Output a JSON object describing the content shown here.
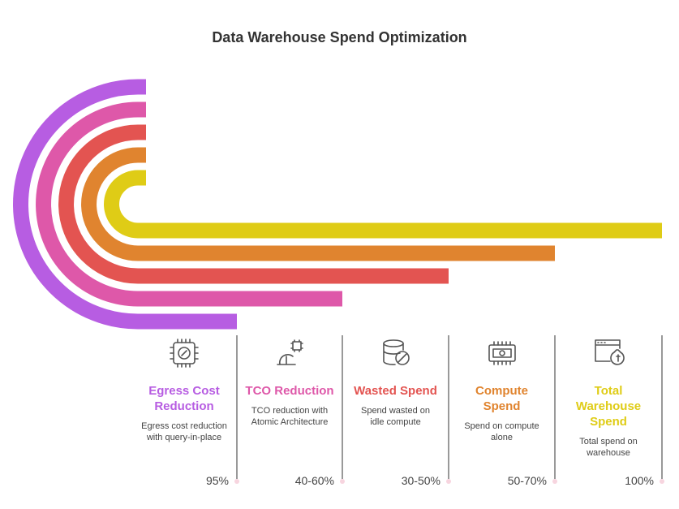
{
  "title": "Data Warehouse Spend Optimization",
  "items": [
    {
      "title": "Egress Cost Reduction",
      "description": "Egress cost reduction with query-in-place",
      "value": "95%",
      "color": "#b75de2"
    },
    {
      "title": "TCO Reduction",
      "description": "TCO reduction with Atomic Architecture",
      "value": "40-60%",
      "color": "#de58a9"
    },
    {
      "title": "Wasted Spend",
      "description": "Spend wasted on idle compute",
      "value": "30-50%",
      "color": "#e35451"
    },
    {
      "title": "Compute Spend",
      "description": "Spend on compute alone",
      "value": "50-70%",
      "color": "#e0842f"
    },
    {
      "title": "Total Warehouse Spend",
      "description": "Total spend on warehouse",
      "value": "100%",
      "color": "#dfcc16"
    }
  ]
}
